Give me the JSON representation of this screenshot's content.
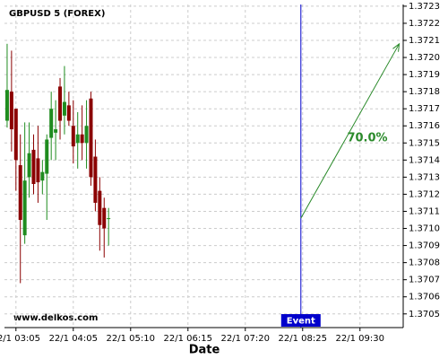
{
  "chart_data": {
    "type": "candlestick",
    "title": "GBPUSD 5 (FOREX)",
    "watermark": "www.delkos.com",
    "x_label": "Date",
    "x": [
      0,
      1,
      2,
      3,
      4,
      5,
      6,
      7,
      8,
      9,
      10,
      11,
      12,
      13,
      14,
      15,
      16,
      17,
      18,
      19,
      20,
      21,
      22,
      23
    ],
    "open": [
      1.37163,
      1.3718,
      1.3717,
      1.37137,
      1.37096,
      1.3713,
      1.37146,
      1.37141,
      1.37128,
      1.37132,
      1.37153,
      1.37156,
      1.37183,
      1.37166,
      1.37172,
      1.3716,
      1.3715,
      1.37155,
      1.3715,
      1.37176,
      1.37142,
      1.37122,
      1.37112,
      1.37106
    ],
    "high": [
      1.37208,
      1.37204,
      1.3717,
      1.37155,
      1.37162,
      1.37162,
      1.37155,
      1.3716,
      1.3714,
      1.37155,
      1.3718,
      1.37175,
      1.37188,
      1.37195,
      1.3718,
      1.37175,
      1.37168,
      1.37172,
      1.37175,
      1.3718,
      1.37152,
      1.3713,
      1.37118,
      1.37112
    ],
    "low": [
      1.37159,
      1.37145,
      1.37122,
      1.37068,
      1.37091,
      1.37118,
      1.3712,
      1.37115,
      1.3712,
      1.37105,
      1.3714,
      1.3714,
      1.37152,
      1.37155,
      1.3716,
      1.37138,
      1.37135,
      1.3714,
      1.37135,
      1.37125,
      1.3711,
      1.37087,
      1.37083,
      1.3709
    ],
    "close": [
      1.37181,
      1.37158,
      1.3714,
      1.37105,
      1.37128,
      1.37144,
      1.37126,
      1.37127,
      1.37133,
      1.37152,
      1.3717,
      1.37158,
      1.37163,
      1.37174,
      1.37163,
      1.37148,
      1.37155,
      1.3715,
      1.3716,
      1.3713,
      1.37115,
      1.37102,
      1.371,
      1.37106
    ],
    "up_color": "#1f8c1f",
    "down_color": "#8b0000",
    "xlim": [
      -0.6,
      89.8
    ],
    "ylim": [
      1.37042,
      1.37231
    ],
    "xticks": [
      {
        "value": 2,
        "label": "22/1 03:05"
      },
      {
        "value": 15,
        "label": "22/1 04:05"
      },
      {
        "value": 28,
        "label": "22/1 05:10"
      },
      {
        "value": 41,
        "label": "22/1 06:15"
      },
      {
        "value": 54,
        "label": "22/1 07:20"
      },
      {
        "value": 67,
        "label": "22/1 08:25"
      },
      {
        "value": 80,
        "label": "22/1 09:30"
      }
    ],
    "yticks": [
      1.3705,
      1.3706,
      1.3707,
      1.3708,
      1.3709,
      {
        "value": 1.371,
        "label": "1.3710"
      },
      1.3711,
      1.3712,
      1.3713,
      1.3714,
      1.3715,
      1.3716,
      1.3717,
      1.3718,
      1.3719,
      {
        "value": 1.372,
        "label": "1.3720"
      },
      1.3721,
      1.3722,
      1.3723
    ],
    "grid": true,
    "event": {
      "x": 66.6,
      "label": "Event",
      "color": "#0000cc"
    },
    "arrow": {
      "x": [
        66.6,
        88.9
      ],
      "y": [
        1.37106,
        1.37208
      ],
      "label": "70.0%",
      "color": "#2a8a2a"
    }
  }
}
